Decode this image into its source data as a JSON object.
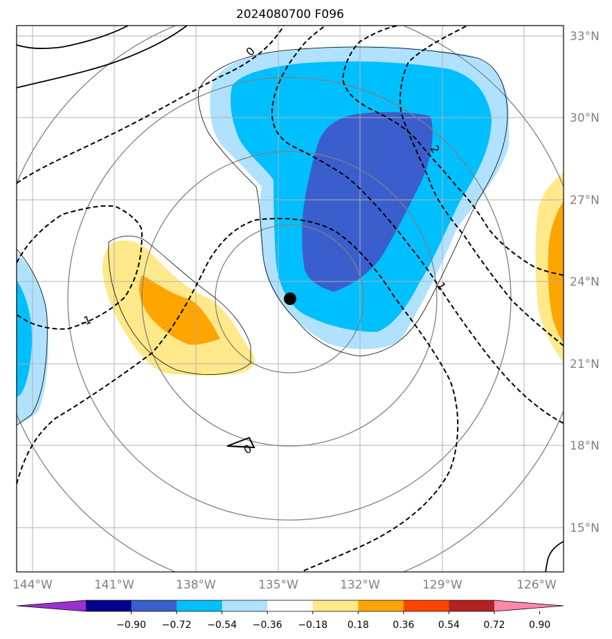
{
  "title": "2024080700 F096",
  "lat_labels": [
    "33°N",
    "30°N",
    "27°N",
    "24°N",
    "21°N",
    "18°N",
    "15°N"
  ],
  "lon_labels": [
    "144°W",
    "141°W",
    "138°W",
    "135°W",
    "132°W",
    "129°W",
    "126°W"
  ],
  "colorbar": {
    "ticks": [
      "−0.90",
      "−0.72",
      "−0.54",
      "−0.36",
      "−0.18",
      "0.18",
      "0.36",
      "0.54",
      "0.72",
      "0.90"
    ],
    "colors": [
      "#9932cc",
      "#00008b",
      "#3a5fcd",
      "#00bfff",
      "#b0e2ff",
      "#ffffff",
      "#ffe98a",
      "#ffa500",
      "#ff4500",
      "#b22222",
      "#ff88aa"
    ]
  },
  "contour_labels": [
    "0",
    "2",
    "1",
    "-1",
    "0"
  ],
  "colors": {
    "grid": "#b0b0b0",
    "circles": "#808080",
    "contour": "#000000"
  },
  "marker": {
    "lon": -134.6,
    "lat": 23.3
  }
}
